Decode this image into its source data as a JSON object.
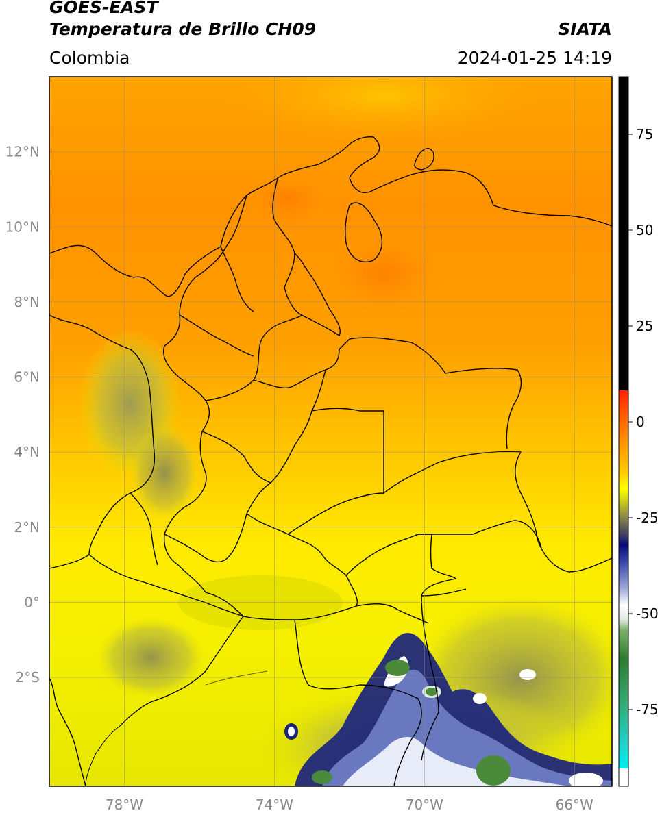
{
  "header": {
    "satellite": "GOES-EAST",
    "product": "Temperatura de Brillo CH09",
    "agency": "SIATA",
    "region": "Colombia",
    "datetime": "2024-01-25 14:19"
  },
  "map": {
    "lon_range": [
      -80,
      -65
    ],
    "lat_range": [
      -4.9,
      14
    ],
    "lon_ticks": [
      {
        "value": -78,
        "label": "78°W"
      },
      {
        "value": -74,
        "label": "74°W"
      },
      {
        "value": -70,
        "label": "70°W"
      },
      {
        "value": -66,
        "label": "66°W"
      }
    ],
    "lat_ticks": [
      {
        "value": 12,
        "label": "12°N"
      },
      {
        "value": 10,
        "label": "10°N"
      },
      {
        "value": 8,
        "label": "8°N"
      },
      {
        "value": 6,
        "label": "6°N"
      },
      {
        "value": 4,
        "label": "4°N"
      },
      {
        "value": 2,
        "label": "2°N"
      },
      {
        "value": 0,
        "label": "0°"
      },
      {
        "value": -2,
        "label": "2°S"
      }
    ],
    "colors": {
      "warm": "#ff9800",
      "mid": "#ffea00",
      "cool": "#c8c832",
      "cold_cloud": "#1a237e",
      "very_cold": "#ffffff",
      "coldest": "#2e7d32"
    }
  },
  "colorbar": {
    "range": [
      -95,
      90
    ],
    "ticks": [
      {
        "value": 75,
        "label": "75"
      },
      {
        "value": 50,
        "label": "50"
      },
      {
        "value": 25,
        "label": "25"
      },
      {
        "value": 0,
        "label": "0"
      },
      {
        "value": -25,
        "label": "-25"
      },
      {
        "value": -50,
        "label": "-50"
      },
      {
        "value": -75,
        "label": "-75"
      }
    ]
  }
}
